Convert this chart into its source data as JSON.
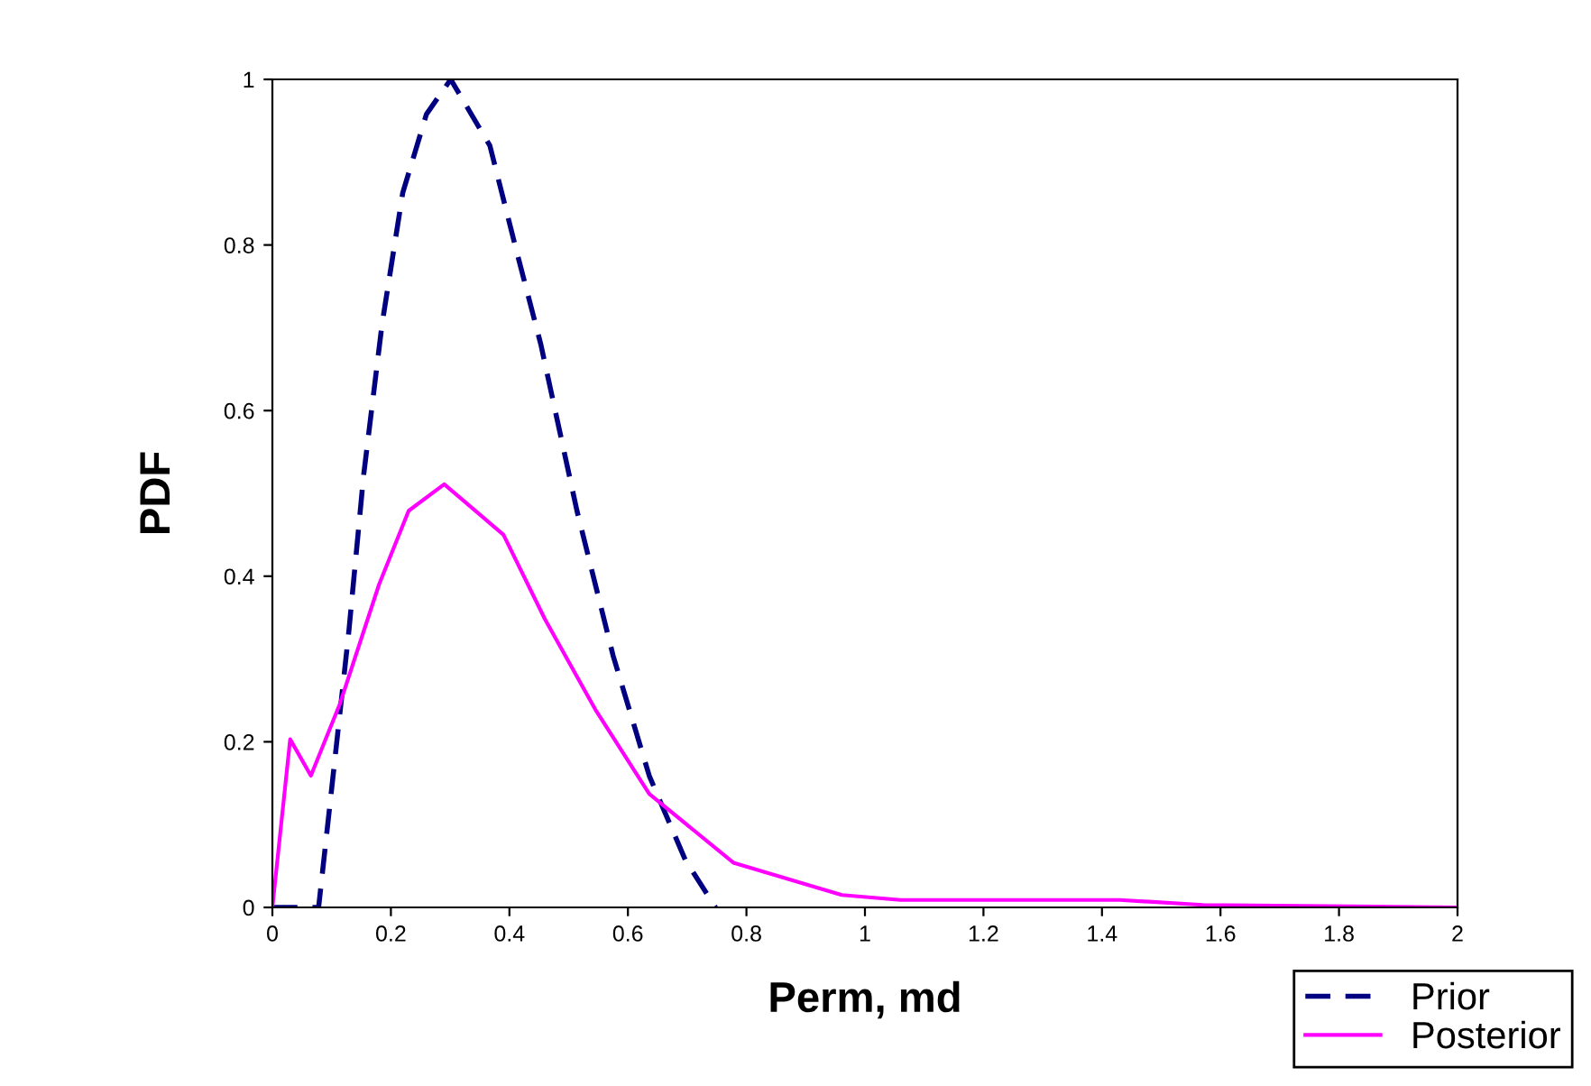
{
  "chart_data": {
    "type": "line",
    "xlabel": "Perm, md",
    "ylabel": "PDF",
    "xlim": [
      0,
      2
    ],
    "ylim": [
      0,
      1
    ],
    "xticks": [
      0,
      0.2,
      0.4,
      0.6,
      0.8,
      1,
      1.2,
      1.4,
      1.6,
      1.8,
      2
    ],
    "yticks": [
      0,
      0.2,
      0.4,
      0.6,
      0.8,
      1
    ],
    "grid": false,
    "legend": "bottom right",
    "marker": "none",
    "series": [
      {
        "name": "Prior",
        "color": "#000080",
        "line_style": "dashed",
        "x": [
          0,
          0.078,
          0.098,
          0.129,
          0.154,
          0.185,
          0.22,
          0.26,
          0.301,
          0.367,
          0.413,
          0.453,
          0.514,
          0.575,
          0.636,
          0.697,
          0.748
        ],
        "values": [
          0,
          0,
          0.13,
          0.333,
          0.522,
          0.704,
          0.863,
          0.958,
          1.0,
          0.92,
          0.79,
          0.68,
          0.479,
          0.304,
          0.159,
          0.057,
          0
        ]
      },
      {
        "name": "Posterior",
        "color": "#ff00ff",
        "line_style": "solid",
        "x": [
          0,
          0.03,
          0.065,
          0.114,
          0.18,
          0.23,
          0.29,
          0.39,
          0.46,
          0.545,
          0.636,
          0.778,
          0.961,
          1.06,
          1.43,
          1.57,
          2.0
        ],
        "values": [
          0,
          0.203,
          0.159,
          0.246,
          0.39,
          0.479,
          0.511,
          0.45,
          0.348,
          0.239,
          0.137,
          0.054,
          0.015,
          0.009,
          0.009,
          0.003,
          0
        ]
      }
    ]
  }
}
